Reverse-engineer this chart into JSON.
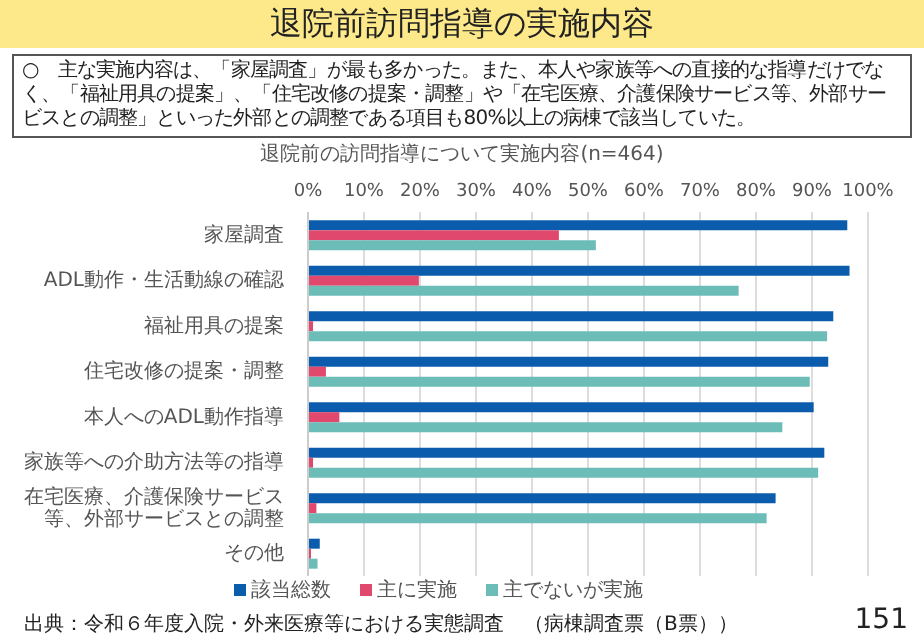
{
  "chart_data": {
    "type": "bar",
    "orientation": "horizontal",
    "title": "退院前訪問指導の実施内容",
    "subtitle": "○　主な実施内容は、「家屋調査」が最も多かった。また、本人や家族等への直接的な指導だけでなく、「福祉用具の提案」、「住宅改修の提案・調整」や「在宅医療、介護保険サービス等、外部サービスとの調整」といった外部との調整である項目も80%以上の病棟で該当していた。",
    "annotations": [
      "退院前の訪問指導について実施内容(n=464)",
      "出典：令和６年度入院・外来医療等における実態調査　（病棟調査票（B票））",
      "151"
    ],
    "categories": [
      "家屋調査",
      "ADL動作・生活動線の確認",
      "福祉用具の提案",
      "住宅改修の提案・調整",
      "本人へのADL動作指導",
      "家族等への介助方法等の指導",
      "在宅医療、介護保険サービス等、外部サービスとの調整",
      "その他"
    ],
    "series": [
      {
        "name": "該当総数",
        "color": "#0b5cad",
        "values": [
          96.3,
          96.7,
          93.8,
          92.9,
          90.3,
          92.2,
          83.5,
          2.1
        ]
      },
      {
        "name": "主に実施",
        "color": "#e0486e",
        "values": [
          44.8,
          19.8,
          0.9,
          3.2,
          5.6,
          0.9,
          1.5,
          0.2
        ]
      },
      {
        "name": "主でないが実施",
        "color": "#6cbcb8",
        "values": [
          51.4,
          76.9,
          92.7,
          89.6,
          84.7,
          91.1,
          81.9,
          1.7
        ]
      }
    ],
    "xlim": [
      0,
      100
    ],
    "xticks": [
      {
        "value": 0,
        "label": "0%"
      },
      {
        "value": 10,
        "label": "10%"
      },
      {
        "value": 20,
        "label": "20%"
      },
      {
        "value": 30,
        "label": "30%"
      },
      {
        "value": 40,
        "label": "40%"
      },
      {
        "value": 50,
        "label": "50%"
      },
      {
        "value": 60,
        "label": "60%"
      },
      {
        "value": 70,
        "label": "70%"
      },
      {
        "value": 80,
        "label": "80%"
      },
      {
        "value": 90,
        "label": "90%"
      },
      {
        "value": 100,
        "label": "100%"
      }
    ],
    "grid": "x",
    "legend": "bottom"
  }
}
